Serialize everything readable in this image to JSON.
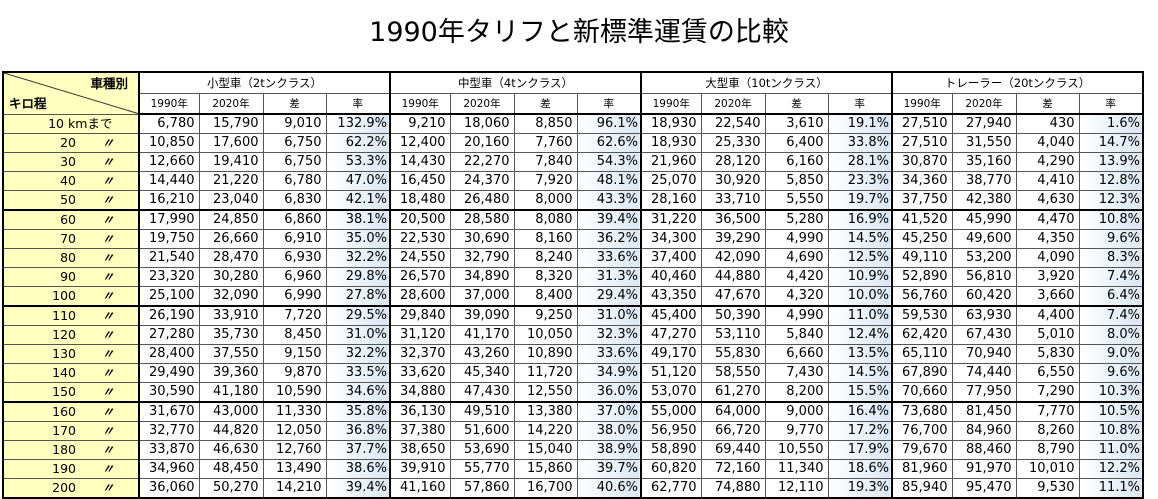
{
  "title": "1990年タリフと新標準運賃の比較",
  "corner": {
    "top": "車種別",
    "bottom": "キロ程"
  },
  "ditto": "〃",
  "groups": [
    "小型車（2tンクラス）",
    "中型車（4tンクラス）",
    "大型車（10tンクラス）",
    "トレーラー（20tンクラス）"
  ],
  "subheaders": [
    "1990年",
    "2020年",
    "差",
    "率"
  ],
  "rows": [
    {
      "km": "10",
      "unit": "kmまで",
      "vals": [
        [
          "6,780",
          "15,790",
          "9,010",
          "132.9%"
        ],
        [
          "9,210",
          "18,060",
          "8,850",
          "96.1%"
        ],
        [
          "18,930",
          "22,540",
          "3,610",
          "19.1%"
        ],
        [
          "27,510",
          "27,940",
          "430",
          "1.6%"
        ]
      ]
    },
    {
      "km": "20",
      "vals": [
        [
          "10,850",
          "17,600",
          "6,750",
          "62.2%"
        ],
        [
          "12,400",
          "20,160",
          "7,760",
          "62.6%"
        ],
        [
          "18,930",
          "25,330",
          "6,400",
          "33.8%"
        ],
        [
          "27,510",
          "31,550",
          "4,040",
          "14.7%"
        ]
      ]
    },
    {
      "km": "30",
      "vals": [
        [
          "12,660",
          "19,410",
          "6,750",
          "53.3%"
        ],
        [
          "14,430",
          "22,270",
          "7,840",
          "54.3%"
        ],
        [
          "21,960",
          "28,120",
          "6,160",
          "28.1%"
        ],
        [
          "30,870",
          "35,160",
          "4,290",
          "13.9%"
        ]
      ]
    },
    {
      "km": "40",
      "vals": [
        [
          "14,440",
          "21,220",
          "6,780",
          "47.0%"
        ],
        [
          "16,450",
          "24,370",
          "7,920",
          "48.1%"
        ],
        [
          "25,070",
          "30,920",
          "5,850",
          "23.3%"
        ],
        [
          "34,360",
          "38,770",
          "4,410",
          "12.8%"
        ]
      ]
    },
    {
      "km": "50",
      "vals": [
        [
          "16,210",
          "23,040",
          "6,830",
          "42.1%"
        ],
        [
          "18,480",
          "26,480",
          "8,000",
          "43.3%"
        ],
        [
          "28,160",
          "33,710",
          "5,550",
          "19.7%"
        ],
        [
          "37,750",
          "42,380",
          "4,630",
          "12.3%"
        ]
      ]
    },
    {
      "km": "60",
      "vals": [
        [
          "17,990",
          "24,850",
          "6,860",
          "38.1%"
        ],
        [
          "20,500",
          "28,580",
          "8,080",
          "39.4%"
        ],
        [
          "31,220",
          "36,500",
          "5,280",
          "16.9%"
        ],
        [
          "41,520",
          "45,990",
          "4,470",
          "10.8%"
        ]
      ]
    },
    {
      "km": "70",
      "vals": [
        [
          "19,750",
          "26,660",
          "6,910",
          "35.0%"
        ],
        [
          "22,530",
          "30,690",
          "8,160",
          "36.2%"
        ],
        [
          "34,300",
          "39,290",
          "4,990",
          "14.5%"
        ],
        [
          "45,250",
          "49,600",
          "4,350",
          "9.6%"
        ]
      ]
    },
    {
      "km": "80",
      "vals": [
        [
          "21,540",
          "28,470",
          "6,930",
          "32.2%"
        ],
        [
          "24,550",
          "32,790",
          "8,240",
          "33.6%"
        ],
        [
          "37,400",
          "42,090",
          "4,690",
          "12.5%"
        ],
        [
          "49,110",
          "53,200",
          "4,090",
          "8.3%"
        ]
      ]
    },
    {
      "km": "90",
      "vals": [
        [
          "23,320",
          "30,280",
          "6,960",
          "29.8%"
        ],
        [
          "26,570",
          "34,890",
          "8,320",
          "31.3%"
        ],
        [
          "40,460",
          "44,880",
          "4,420",
          "10.9%"
        ],
        [
          "52,890",
          "56,810",
          "3,920",
          "7.4%"
        ]
      ]
    },
    {
      "km": "100",
      "vals": [
        [
          "25,100",
          "32,090",
          "6,990",
          "27.8%"
        ],
        [
          "28,600",
          "37,000",
          "8,400",
          "29.4%"
        ],
        [
          "43,350",
          "47,670",
          "4,320",
          "10.0%"
        ],
        [
          "56,760",
          "60,420",
          "3,660",
          "6.4%"
        ]
      ]
    },
    {
      "km": "110",
      "vals": [
        [
          "26,190",
          "33,910",
          "7,720",
          "29.5%"
        ],
        [
          "29,840",
          "39,090",
          "9,250",
          "31.0%"
        ],
        [
          "45,400",
          "50,390",
          "4,990",
          "11.0%"
        ],
        [
          "59,530",
          "63,930",
          "4,400",
          "7.4%"
        ]
      ]
    },
    {
      "km": "120",
      "vals": [
        [
          "27,280",
          "35,730",
          "8,450",
          "31.0%"
        ],
        [
          "31,120",
          "41,170",
          "10,050",
          "32.3%"
        ],
        [
          "47,270",
          "53,110",
          "5,840",
          "12.4%"
        ],
        [
          "62,420",
          "67,430",
          "5,010",
          "8.0%"
        ]
      ]
    },
    {
      "km": "130",
      "vals": [
        [
          "28,400",
          "37,550",
          "9,150",
          "32.2%"
        ],
        [
          "32,370",
          "43,260",
          "10,890",
          "33.6%"
        ],
        [
          "49,170",
          "55,830",
          "6,660",
          "13.5%"
        ],
        [
          "65,110",
          "70,940",
          "5,830",
          "9.0%"
        ]
      ]
    },
    {
      "km": "140",
      "vals": [
        [
          "29,490",
          "39,360",
          "9,870",
          "33.5%"
        ],
        [
          "33,620",
          "45,340",
          "11,720",
          "34.9%"
        ],
        [
          "51,120",
          "58,550",
          "7,430",
          "14.5%"
        ],
        [
          "67,890",
          "74,440",
          "6,550",
          "9.6%"
        ]
      ]
    },
    {
      "km": "150",
      "vals": [
        [
          "30,590",
          "41,180",
          "10,590",
          "34.6%"
        ],
        [
          "34,880",
          "47,430",
          "12,550",
          "36.0%"
        ],
        [
          "53,070",
          "61,270",
          "8,200",
          "15.5%"
        ],
        [
          "70,660",
          "77,950",
          "7,290",
          "10.3%"
        ]
      ]
    },
    {
      "km": "160",
      "vals": [
        [
          "31,670",
          "43,000",
          "11,330",
          "35.8%"
        ],
        [
          "36,130",
          "49,510",
          "13,380",
          "37.0%"
        ],
        [
          "55,000",
          "64,000",
          "9,000",
          "16.4%"
        ],
        [
          "73,680",
          "81,450",
          "7,770",
          "10.5%"
        ]
      ]
    },
    {
      "km": "170",
      "vals": [
        [
          "32,770",
          "44,820",
          "12,050",
          "36.8%"
        ],
        [
          "37,380",
          "51,600",
          "14,220",
          "38.0%"
        ],
        [
          "56,950",
          "66,720",
          "9,770",
          "17.2%"
        ],
        [
          "76,700",
          "84,960",
          "8,260",
          "10.8%"
        ]
      ]
    },
    {
      "km": "180",
      "vals": [
        [
          "33,870",
          "46,630",
          "12,760",
          "37.7%"
        ],
        [
          "38,650",
          "53,690",
          "15,040",
          "38.9%"
        ],
        [
          "58,890",
          "69,440",
          "10,550",
          "17.9%"
        ],
        [
          "79,670",
          "88,460",
          "8,790",
          "11.0%"
        ]
      ]
    },
    {
      "km": "190",
      "vals": [
        [
          "34,960",
          "48,450",
          "13,490",
          "38.6%"
        ],
        [
          "39,910",
          "55,770",
          "15,860",
          "39.7%"
        ],
        [
          "60,820",
          "72,160",
          "11,340",
          "18.6%"
        ],
        [
          "81,960",
          "91,970",
          "10,010",
          "12.2%"
        ]
      ]
    },
    {
      "km": "200",
      "vals": [
        [
          "36,060",
          "50,270",
          "14,210",
          "39.4%"
        ],
        [
          "41,160",
          "57,860",
          "16,700",
          "40.6%"
        ],
        [
          "62,770",
          "74,880",
          "12,110",
          "19.3%"
        ],
        [
          "85,940",
          "95,470",
          "9,530",
          "11.1%"
        ]
      ]
    }
  ]
}
